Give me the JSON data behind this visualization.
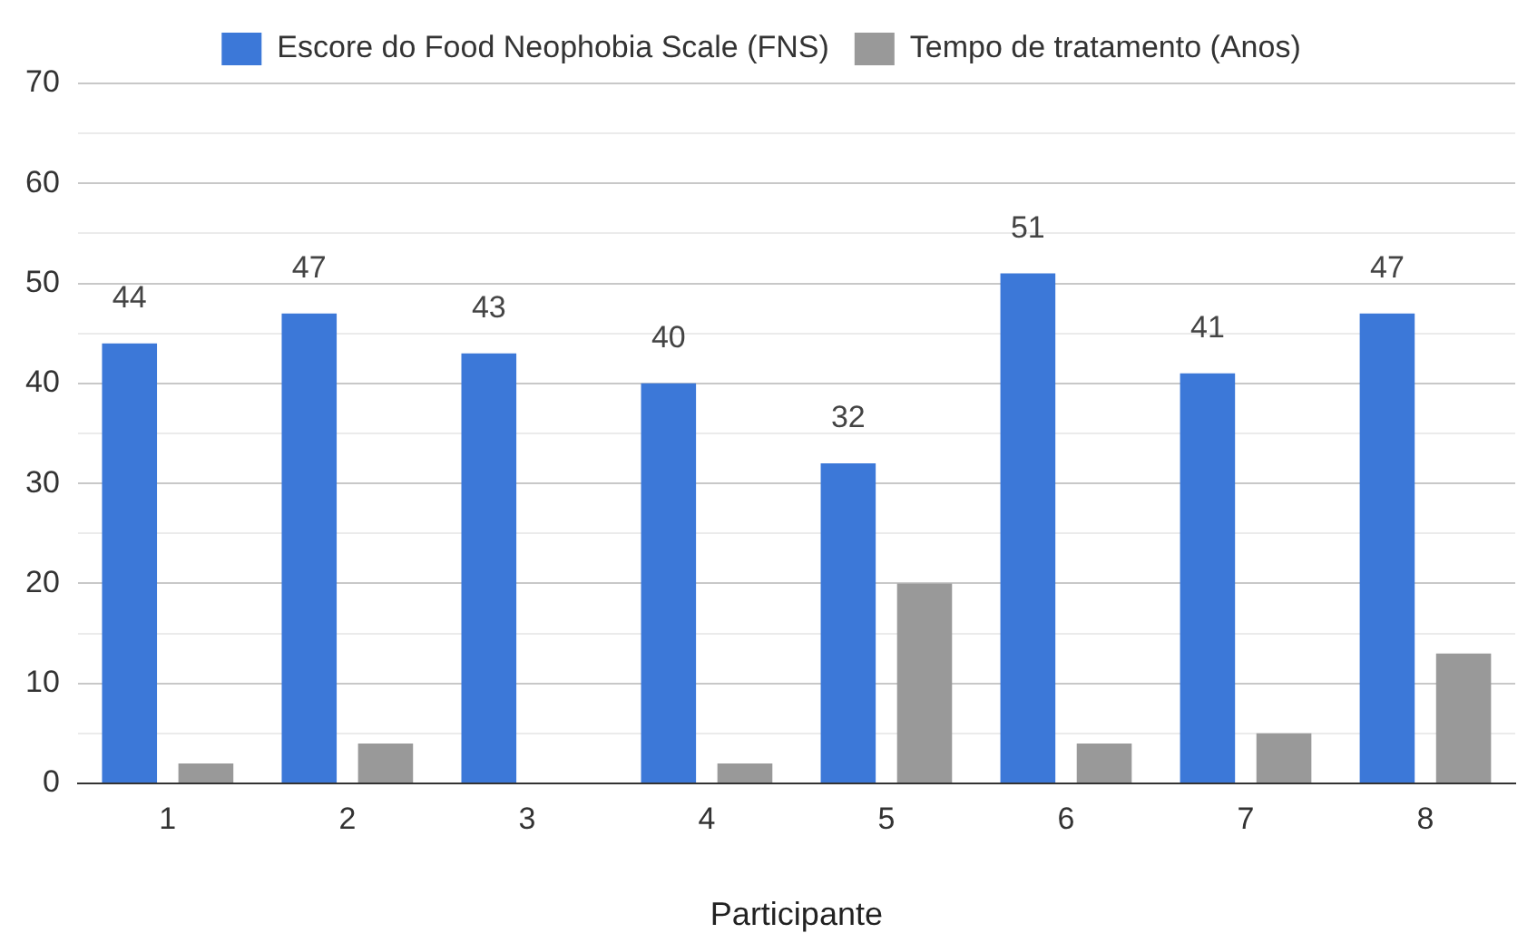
{
  "chart_data": {
    "type": "bar",
    "xlabel": "Participante",
    "categories": [
      "1",
      "2",
      "3",
      "4",
      "5",
      "6",
      "7",
      "8"
    ],
    "series": [
      {
        "name": "Escore do Food Neophobia Scale (FNS)",
        "color": "#3c78d8",
        "values": [
          44,
          47,
          43,
          40,
          32,
          51,
          41,
          47
        ],
        "value_labels": [
          "44",
          "47",
          "43",
          "40",
          "32",
          "51",
          "41",
          "47"
        ]
      },
      {
        "name": "Tempo de tratamento (Anos)",
        "color": "#999999",
        "values": [
          2,
          4,
          0,
          2,
          20,
          4,
          5,
          13
        ]
      }
    ],
    "ylim": [
      0,
      70
    ],
    "yticks": [
      0,
      {
        "value": 5,
        "label": null
      },
      10,
      {
        "value": 15,
        "label": null
      },
      20,
      {
        "value": 25,
        "label": null
      },
      30,
      {
        "value": 35,
        "label": null
      },
      40,
      {
        "value": 45,
        "label": null
      },
      50,
      {
        "value": 55,
        "label": null
      },
      60,
      {
        "value": 65,
        "label": null
      },
      70
    ],
    "grid": "y",
    "legend": "top"
  }
}
